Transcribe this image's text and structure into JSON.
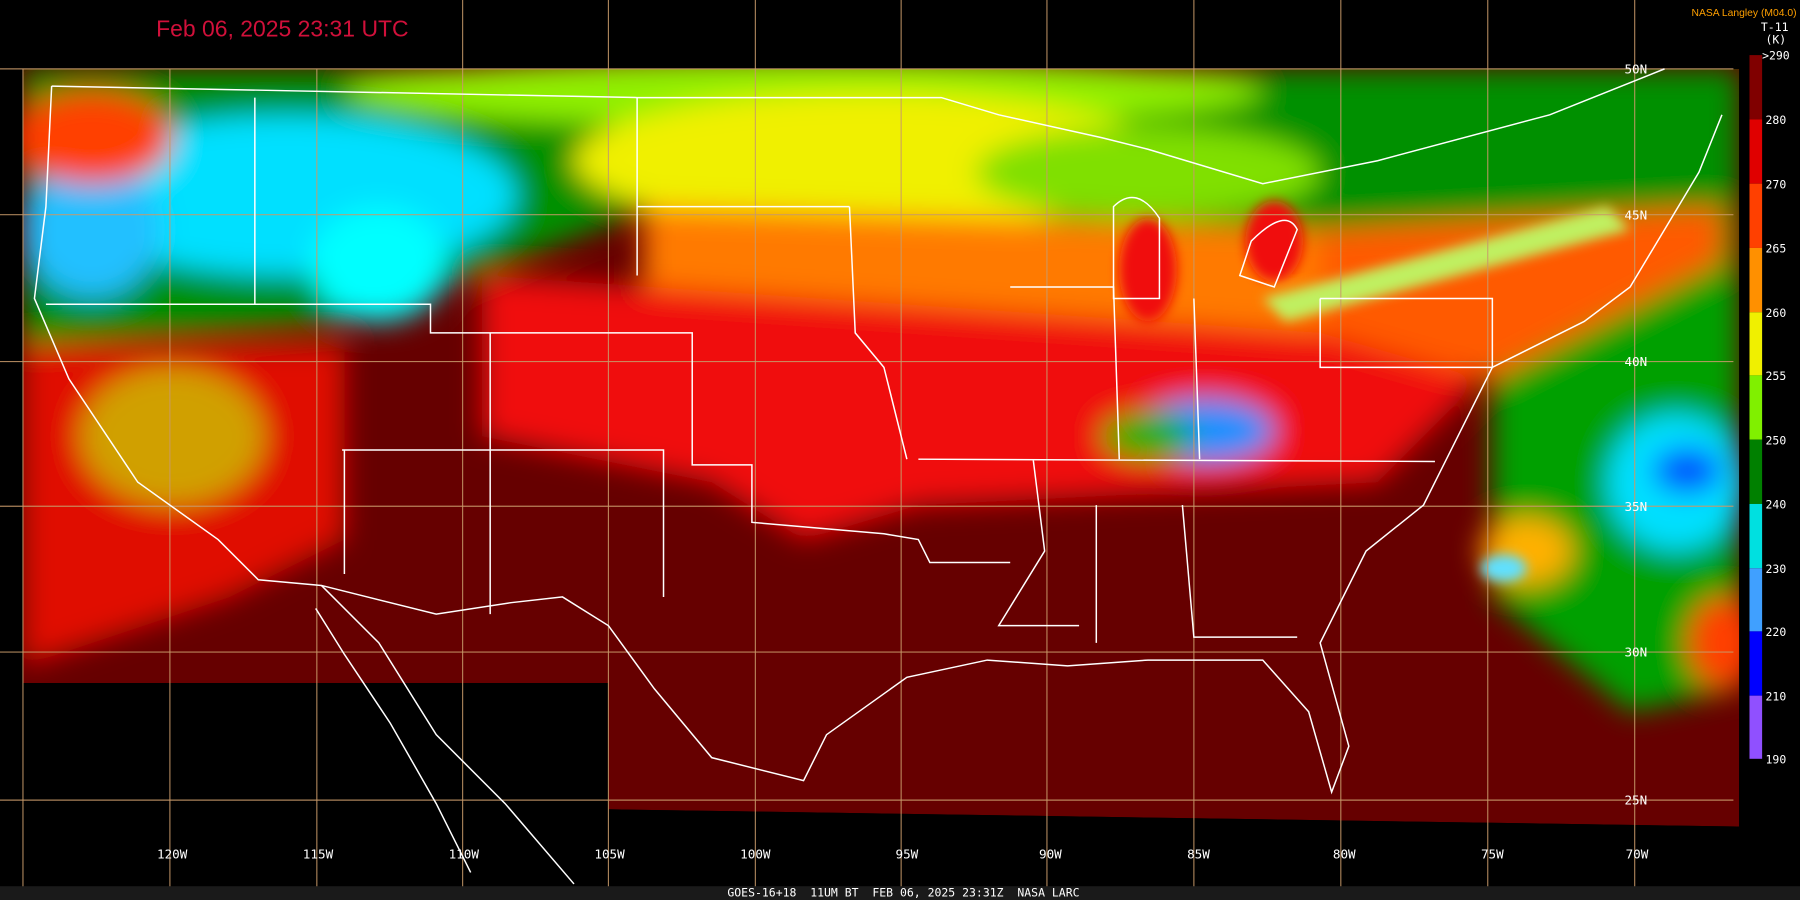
{
  "header": {
    "title": "Feb 06, 2025 23:31 UTC",
    "credit": "NASA Langley (M04.0)",
    "product": "T-11",
    "unit": "(K)"
  },
  "colorbar": {
    "labels": [
      ">290",
      "280",
      "270",
      "265",
      "260",
      "255",
      "250",
      "240",
      "230",
      "220",
      "210",
      "190"
    ]
  },
  "grid": {
    "latitude_labels": [
      "50N",
      "45N",
      "40N",
      "35N",
      "30N",
      "25N"
    ],
    "longitude_labels": [
      "120W",
      "115W",
      "110W",
      "105W",
      "100W",
      "95W",
      "90W",
      "85W",
      "80W",
      "75W",
      "70W"
    ]
  },
  "footer": {
    "caption": "GOES-16+18  11UM BT  FEB 06, 2025 23:31Z  NASA LARC"
  }
}
